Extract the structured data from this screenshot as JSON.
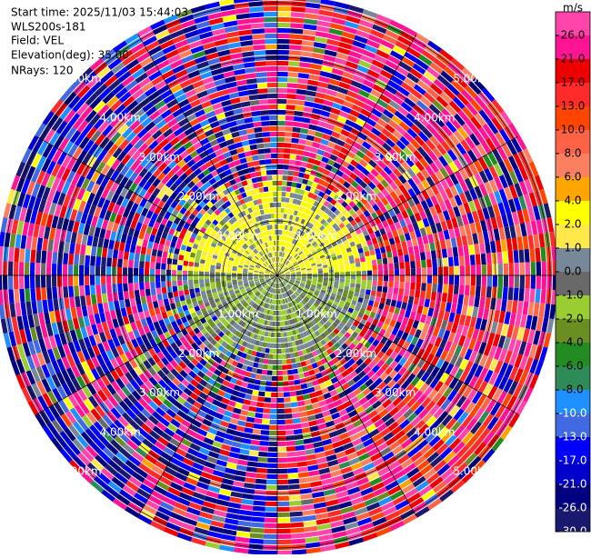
{
  "header": {
    "start_time": "Start time: 2025/11/03 15:44:03",
    "instrument": "WLS200s-181",
    "field": "Field: VEL",
    "elevation": "Elevation(deg): 35.00",
    "nrays": "NRays: 120"
  },
  "chart_data": {
    "type": "ppi",
    "range_rings": [
      {
        "value": 1,
        "label": "1.00km"
      },
      {
        "value": 2,
        "label": "2.00km"
      },
      {
        "value": 3,
        "label": "3.00km"
      },
      {
        "value": 4,
        "label": "4.00km"
      },
      {
        "value": 5,
        "label": "5.00km"
      }
    ],
    "colorbar": {
      "label": "m/s",
      "ticks": [
        {
          "value": 26,
          "label": "26.0"
        },
        {
          "value": 21,
          "label": "21.0"
        },
        {
          "value": 17,
          "label": "17.0"
        },
        {
          "value": 13,
          "label": "13.0"
        },
        {
          "value": 10,
          "label": "10.0"
        },
        {
          "value": 8,
          "label": "8.0"
        },
        {
          "value": 6,
          "label": "6.0"
        },
        {
          "value": 4,
          "label": "4.0"
        },
        {
          "value": 2,
          "label": "2.0"
        },
        {
          "value": 1,
          "label": "1.0"
        },
        {
          "value": 0,
          "label": "0.0"
        },
        {
          "value": -1,
          "label": "-1.0"
        },
        {
          "value": -2,
          "label": "-2.0"
        },
        {
          "value": -4,
          "label": "-4.0"
        },
        {
          "value": -6,
          "label": "-6.0"
        },
        {
          "value": -8,
          "label": "-8.0"
        },
        {
          "value": -10,
          "label": "-10.0"
        },
        {
          "value": -13,
          "label": "-13.0"
        },
        {
          "value": -17,
          "label": "-17.0"
        },
        {
          "value": -21,
          "label": "-21.0"
        },
        {
          "value": -26,
          "label": "-26.0"
        },
        {
          "value": -30,
          "label": "-30.0"
        }
      ],
      "colors": [
        "#ff44aa",
        "#ff1493",
        "#ee0000",
        "#ff2a2a",
        "#ff4500",
        "#ff6347",
        "#fa8060",
        "#ffa500",
        "#ffff00",
        "#ffe84a",
        "#778899",
        "#696969",
        "#9acd32",
        "#6b8e23",
        "#228b22",
        "#2e8b57",
        "#1e90ff",
        "#4169e1",
        "#0000ff",
        "#0000cd",
        "#000080",
        "#191970"
      ]
    }
  }
}
